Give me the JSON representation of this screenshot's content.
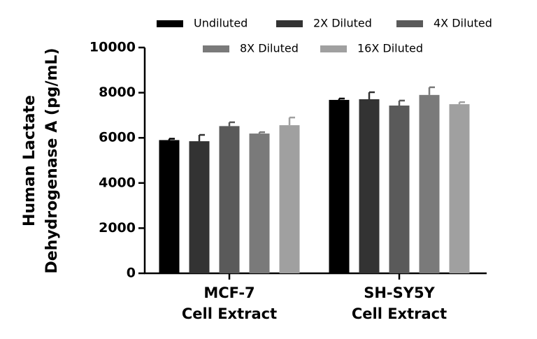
{
  "chart_data": {
    "type": "bar",
    "y_label": [
      "Human Lactate",
      "Dehydrogenase A (pg/mL)"
    ],
    "categories": [
      [
        "MCF-7",
        "Cell Extract"
      ],
      [
        "SH-SY5Y",
        "Cell Extract"
      ]
    ],
    "series": [
      {
        "name": "Undiluted",
        "color": "#000000",
        "values": [
          5900,
          7680
        ],
        "errors": [
          60,
          60
        ]
      },
      {
        "name": "2X Diluted",
        "color": "#333333",
        "values": [
          5850,
          7710
        ],
        "errors": [
          280,
          310
        ]
      },
      {
        "name": "4X Diluted",
        "color": "#5a5a5a",
        "values": [
          6520,
          7430
        ],
        "errors": [
          170,
          220
        ]
      },
      {
        "name": "8X Diluted",
        "color": "#7a7a7a",
        "values": [
          6190,
          7900
        ],
        "errors": [
          60,
          340
        ]
      },
      {
        "name": "16X Diluted",
        "color": "#a0a0a0",
        "values": [
          6560,
          7490
        ],
        "errors": [
          340,
          90
        ]
      }
    ],
    "ylim": [
      0,
      10000
    ],
    "yticks": [
      0,
      2000,
      4000,
      6000,
      8000,
      10000
    ]
  }
}
